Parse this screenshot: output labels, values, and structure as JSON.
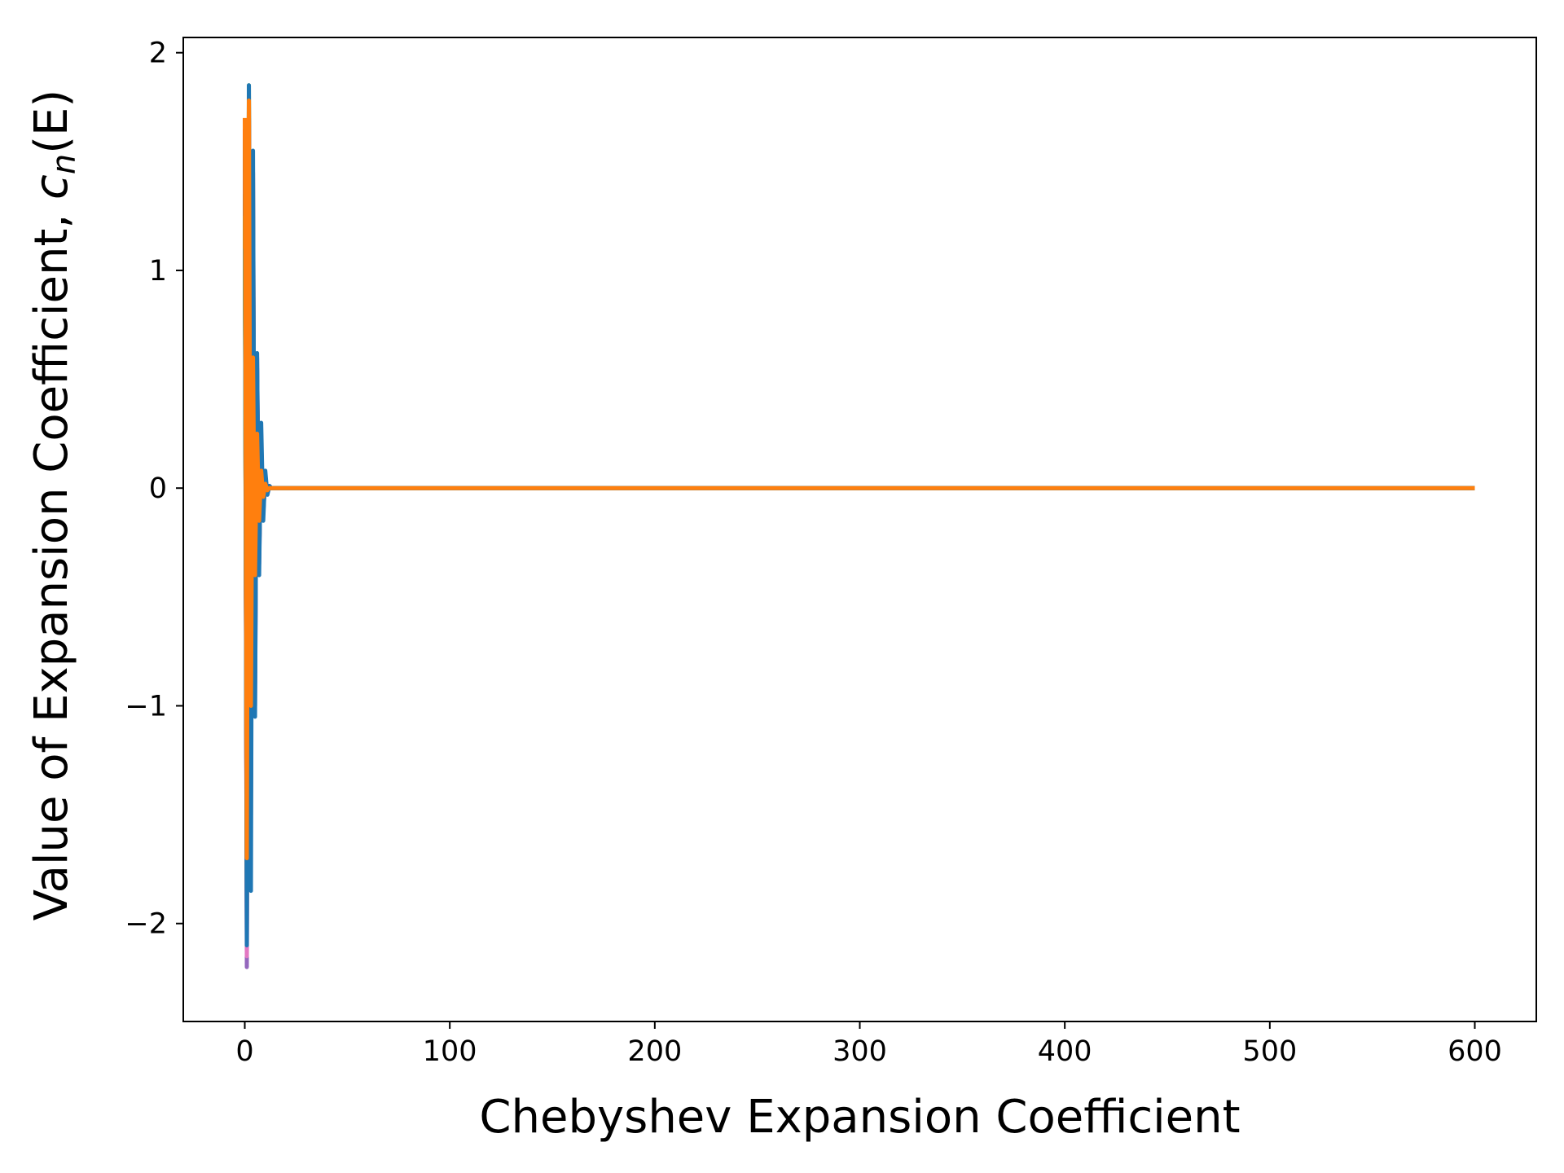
{
  "chart_data": {
    "type": "line",
    "title": "",
    "xlabel": "Chebyshev Expansion Coefficient",
    "ylabel_prefix": "Value of Expansion Coefficient, ",
    "ylabel_symbol": "c",
    "ylabel_subscript": "n",
    "ylabel_suffix": "(E)",
    "xlim": [
      -30,
      630
    ],
    "ylim": [
      -2.45,
      2.07
    ],
    "xticks": [
      0,
      100,
      200,
      300,
      400,
      500,
      600
    ],
    "xtick_labels": [
      "0",
      "100",
      "200",
      "300",
      "400",
      "500",
      "600"
    ],
    "yticks": [
      -2,
      -1,
      0,
      1,
      2
    ],
    "ytick_labels": [
      "−2",
      "−1",
      "0",
      "1",
      "2"
    ],
    "grid": false,
    "legend": "none",
    "series_colors": [
      "#1f77b4",
      "#ff7f0e",
      "#2ca02c",
      "#d62728",
      "#9467bd",
      "#8c564b",
      "#e377c2",
      "#7f7f7f",
      "#bcbd22",
      "#17becf"
    ],
    "series": [
      {
        "values": [
          1.55,
          -1.75,
          1.7,
          -1.2,
          0.95,
          -0.7,
          0.45,
          -0.28,
          0.15,
          -0.08,
          0.04,
          -0.02,
          0.01,
          0,
          0,
          0,
          0,
          0,
          0,
          0
        ]
      },
      {
        "values": [
          1.4,
          -1.55,
          1.8,
          -1.5,
          1.05,
          -0.6,
          0.35,
          -0.2,
          0.1,
          -0.05,
          0.02,
          -0.01,
          0,
          0,
          0,
          0,
          0,
          0,
          0,
          0
        ]
      },
      {
        "values": [
          1.2,
          -1.95,
          1.85,
          -1.1,
          0.8,
          -0.75,
          0.5,
          -0.3,
          0.18,
          -0.1,
          0.05,
          -0.02,
          0.01,
          0,
          0,
          0,
          0,
          0,
          0,
          0
        ]
      },
      {
        "values": [
          1.65,
          -2.05,
          1.6,
          -1.3,
          1.45,
          -0.9,
          0.55,
          -0.32,
          0.2,
          -0.11,
          0.05,
          -0.02,
          0.01,
          0,
          0,
          0,
          0,
          0,
          0,
          0
        ]
      },
      {
        "values": [
          1.5,
          -2.2,
          1.75,
          -1.4,
          1.2,
          -1.0,
          0.6,
          -0.35,
          0.22,
          -0.12,
          0.06,
          -0.03,
          0.01,
          0,
          0,
          0,
          0,
          0,
          0,
          0
        ]
      },
      {
        "values": [
          1.3,
          -1.8,
          1.7,
          -1.25,
          1.25,
          -0.85,
          0.5,
          -0.3,
          0.17,
          -0.09,
          0.04,
          -0.02,
          0,
          0,
          0,
          0,
          0,
          0,
          0,
          0
        ]
      },
      {
        "values": [
          1.45,
          -2.15,
          1.68,
          -1.05,
          0.9,
          -0.65,
          0.4,
          -0.25,
          0.14,
          -0.07,
          0.03,
          -0.01,
          0,
          0,
          0,
          0,
          0,
          0,
          0,
          0
        ]
      },
      {
        "values": [
          1.35,
          -2.0,
          1.62,
          -1.15,
          0.85,
          -0.55,
          0.38,
          -0.22,
          0.12,
          -0.06,
          0.03,
          -0.01,
          0,
          0,
          0,
          0,
          0,
          0,
          0,
          0
        ]
      },
      {
        "values": [
          1.25,
          -1.9,
          1.55,
          -0.95,
          0.75,
          -0.5,
          0.33,
          -0.2,
          0.11,
          -0.05,
          0.02,
          -0.01,
          0,
          0,
          0,
          0,
          0,
          0,
          0,
          0
        ]
      },
      {
        "values": [
          1.1,
          -1.6,
          1.5,
          -0.8,
          1.0,
          -0.45,
          0.3,
          -0.18,
          0.1,
          -0.05,
          0.02,
          -0.01,
          0,
          0,
          0,
          0,
          0,
          0,
          0,
          0
        ]
      },
      {
        "values": [
          1.6,
          -2.1,
          1.85,
          -1.85,
          1.55,
          -1.05,
          0.62,
          -0.4,
          0.3,
          -0.15,
          0.08,
          -0.03,
          0.01,
          0,
          0,
          0,
          0,
          0,
          0,
          0
        ]
      },
      {
        "values": [
          1.7,
          -1.7,
          1.78,
          -1.0,
          0.6,
          -0.4,
          0.25,
          -0.15,
          0.08,
          -0.04,
          0.02,
          -0.01,
          0,
          0,
          0,
          0,
          0,
          0,
          0,
          0
        ]
      }
    ],
    "series_x_tail_end": 600
  }
}
